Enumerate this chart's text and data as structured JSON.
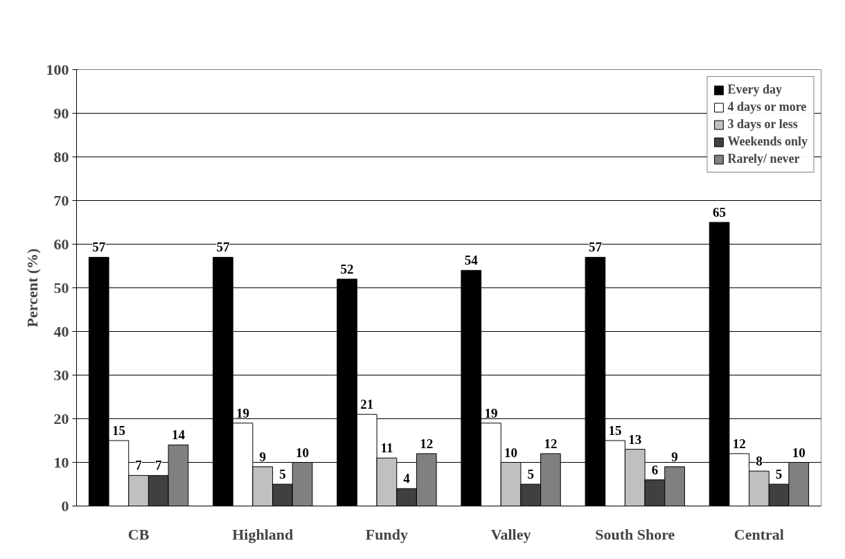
{
  "chart_data": {
    "type": "bar",
    "ylabel": "Percent (%)",
    "categories": [
      "CB",
      "Highland",
      "Fundy",
      "Valley",
      "South Shore",
      "Central"
    ],
    "series": [
      {
        "name": "Every day",
        "color": "#000000",
        "values": [
          57,
          57,
          52,
          54,
          57,
          65
        ]
      },
      {
        "name": "4 days or more",
        "color": "#ffffff",
        "values": [
          15,
          19,
          21,
          19,
          15,
          12
        ]
      },
      {
        "name": "3 days or less",
        "color": "#c0c0c0",
        "values": [
          7,
          9,
          11,
          10,
          13,
          8
        ]
      },
      {
        "name": "Weekends only",
        "color": "#404040",
        "values": [
          7,
          5,
          4,
          5,
          6,
          5
        ]
      },
      {
        "name": "Rarely/ never",
        "color": "#808080",
        "values": [
          14,
          10,
          12,
          12,
          9,
          10
        ]
      }
    ],
    "ylim": [
      0,
      100
    ],
    "yticks": [
      0,
      10,
      20,
      30,
      40,
      50,
      60,
      70,
      80,
      90,
      100
    ],
    "grid": "y",
    "legend": "top right",
    "data_labels": true
  }
}
